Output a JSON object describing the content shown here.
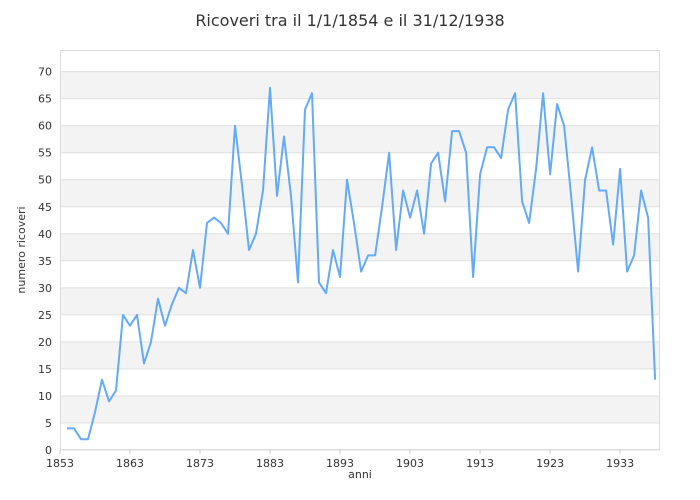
{
  "chart_data": {
    "type": "line",
    "title": "Ricoveri tra il 1/1/1854 e il 31/12/1938",
    "xlabel": "anni",
    "ylabel": "numero ricoveri",
    "xlim": [
      1853,
      1938.7
    ],
    "ylim": [
      0,
      74
    ],
    "xticks": [
      1853,
      1863,
      1873,
      1883,
      1893,
      1903,
      1913,
      1923,
      1933
    ],
    "yticks": [
      0,
      5,
      10,
      15,
      20,
      25,
      30,
      35,
      40,
      45,
      50,
      55,
      60,
      65,
      70
    ],
    "grid": "horizontal alternating bands",
    "line_color": "#64aaf5",
    "band_color": "#f3f3f3",
    "x_start": 1854,
    "values": [
      4,
      4,
      2,
      2,
      7,
      13,
      9,
      11,
      25,
      23,
      25,
      16,
      20,
      28,
      23,
      27,
      30,
      29,
      37,
      30,
      42,
      43,
      42,
      40,
      60,
      49,
      37,
      40,
      48,
      67,
      47,
      58,
      47,
      31,
      63,
      66,
      31,
      29,
      37,
      32,
      50,
      42,
      33,
      36,
      36,
      45,
      55,
      37,
      48,
      43,
      48,
      40,
      53,
      55,
      46,
      59,
      59,
      55,
      32,
      51,
      56,
      56,
      54,
      63,
      66,
      46,
      42,
      52,
      66,
      51,
      64,
      60,
      47,
      33,
      50,
      56,
      48,
      48,
      38,
      52,
      33,
      36,
      48,
      43,
      13
    ]
  }
}
